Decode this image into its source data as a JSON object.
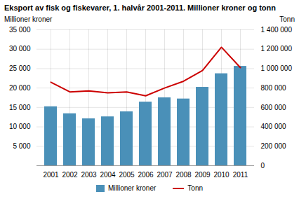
{
  "chart_data": {
    "type": "bar",
    "title": "Eksport av fisk og fiskevarer, 1. halvår 2001-2011. Millioner kroner og tonn",
    "categories": [
      "2001",
      "2002",
      "2003",
      "2004",
      "2005",
      "2006",
      "2007",
      "2008",
      "2009",
      "2010",
      "2011"
    ],
    "series": [
      {
        "name": "Millioner kroner",
        "type": "bar",
        "color": "#4a90b8",
        "values": [
          15200,
          13400,
          12100,
          12600,
          13900,
          16400,
          17500,
          17200,
          20200,
          23700,
          25600
        ]
      },
      {
        "name": "Tonn",
        "type": "line",
        "axis": "y2",
        "color": "#cc0000",
        "values": [
          860000,
          760000,
          770000,
          750000,
          760000,
          720000,
          800000,
          870000,
          980000,
          1220000,
          1010000
        ]
      }
    ],
    "ylabel": "Millioner kroner",
    "y2label": "Tonn",
    "ylim": [
      0,
      35000
    ],
    "yticks": [
      {
        "value": 5000,
        "label": "5 000"
      },
      {
        "value": 10000,
        "label": "10 000"
      },
      {
        "value": 15000,
        "label": "15 000"
      },
      {
        "value": 20000,
        "label": "20 000"
      },
      {
        "value": 25000,
        "label": "25 000"
      },
      {
        "value": 30000,
        "label": "30 000"
      },
      {
        "value": 35000,
        "label": "35 000"
      }
    ],
    "y2lim": [
      0,
      1400000
    ],
    "y2ticks": [
      0,
      {
        "value": 200000,
        "label": "200 000"
      },
      {
        "value": 400000,
        "label": "400 000"
      },
      {
        "value": 600000,
        "label": "600 000"
      },
      {
        "value": 800000,
        "label": "800 000"
      },
      {
        "value": 1000000,
        "label": "1 000 000"
      },
      {
        "value": 1200000,
        "label": "1 200 000"
      },
      {
        "value": 1400000,
        "label": "1 400 000"
      }
    ],
    "grid": true,
    "legend": "bottom"
  }
}
